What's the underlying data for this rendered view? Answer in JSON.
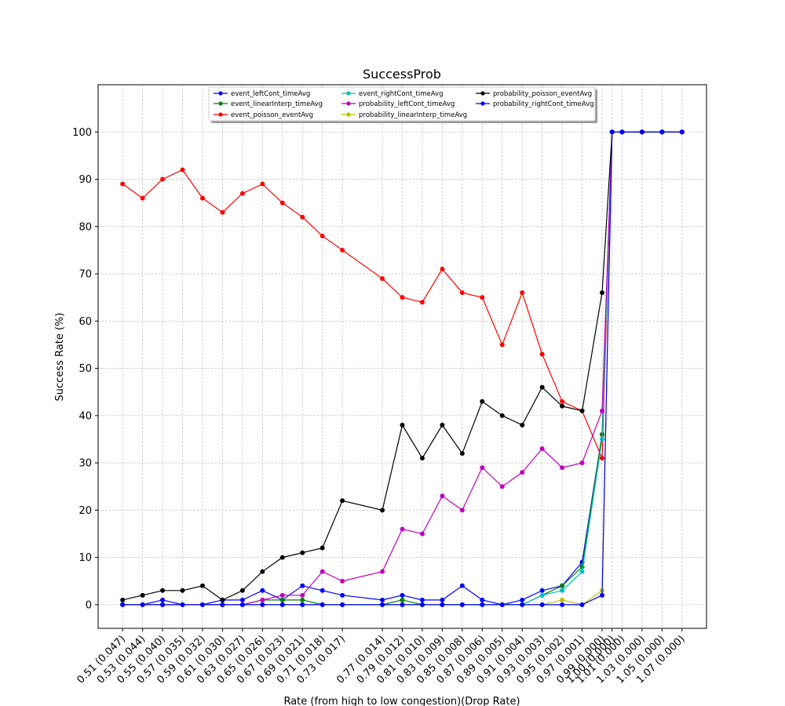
{
  "chart_data": {
    "type": "line",
    "title": "SuccessProb",
    "xlabel": "Rate (from high to low congestion)(Drop Rate)",
    "ylabel": "Success Rate (%)",
    "ylim": [
      -5,
      110
    ],
    "yticks": [
      0,
      10,
      20,
      30,
      40,
      50,
      60,
      70,
      80,
      90,
      100
    ],
    "grid": true,
    "legend_position": "top-center",
    "x": [
      0.51,
      0.53,
      0.55,
      0.57,
      0.59,
      0.61,
      0.63,
      0.65,
      0.67,
      0.69,
      0.71,
      0.73,
      0.77,
      0.79,
      0.81,
      0.83,
      0.85,
      0.87,
      0.89,
      0.91,
      0.93,
      0.95,
      0.97,
      0.99,
      1.0,
      1.01,
      1.03,
      1.05,
      1.07
    ],
    "categories": [
      "0.51 (0.047)",
      "0.53 (0.044)",
      "0.55 (0.040)",
      "0.57 (0.035)",
      "0.59 (0.032)",
      "0.61 (0.030)",
      "0.63 (0.027)",
      "0.65 (0.026)",
      "0.67 (0.023)",
      "0.69 (0.021)",
      "0.71 (0.018)",
      "0.73 (0.017)",
      "0.77 (0.014)",
      "0.79 (0.012)",
      "0.81 (0.010)",
      "0.83 (0.009)",
      "0.85 (0.008)",
      "0.87 (0.006)",
      "0.89 (0.005)",
      "0.91 (0.004)",
      "0.93 (0.003)",
      "0.95 (0.002)",
      "0.97 (0.001)",
      "0.99 (0.000)",
      "1.00 (0.000)",
      "1.01 (0.000)",
      "1.03 (0.000)",
      "1.05 (0.000)",
      "1.07 (0.000)"
    ],
    "series": [
      {
        "name": "event_leftCont_timeAvg",
        "color": "#0000ff",
        "values": [
          0,
          0,
          1,
          0,
          0,
          1,
          1,
          3,
          1,
          4,
          3,
          2,
          1,
          2,
          1,
          1,
          4,
          1,
          0,
          1,
          3,
          4,
          9,
          36,
          100,
          100,
          100,
          100,
          100
        ]
      },
      {
        "name": "event_linearInterp_timeAvg",
        "color": "#008000",
        "values": [
          0,
          0,
          0,
          0,
          0,
          0,
          0,
          1,
          1,
          1,
          0,
          0,
          0,
          1,
          0,
          0,
          0,
          0,
          0,
          0,
          2,
          4,
          8,
          36,
          100,
          100,
          100,
          100,
          100
        ]
      },
      {
        "name": "event_poisson_eventAvg",
        "color": "#ff0000",
        "values": [
          89,
          86,
          90,
          92,
          86,
          83,
          87,
          89,
          85,
          82,
          78,
          75,
          69,
          65,
          64,
          71,
          66,
          65,
          55,
          66,
          53,
          43,
          41,
          31,
          100,
          100,
          100,
          100,
          100
        ]
      },
      {
        "name": "event_rightCont_timeAvg",
        "color": "#00bfbf",
        "values": [
          0,
          0,
          0,
          0,
          0,
          0,
          0,
          0,
          0,
          0,
          0,
          0,
          0,
          0,
          0,
          0,
          0,
          0,
          0,
          0,
          2,
          3,
          7,
          35,
          100,
          100,
          100,
          100,
          100
        ]
      },
      {
        "name": "probability_leftCont_timeAvg",
        "color": "#bf00bf",
        "values": [
          0,
          0,
          0,
          0,
          0,
          0,
          0,
          1,
          2,
          2,
          7,
          5,
          7,
          16,
          15,
          23,
          20,
          29,
          25,
          28,
          33,
          29,
          30,
          41,
          100,
          100,
          100,
          100,
          100
        ]
      },
      {
        "name": "probability_linearInterp_timeAvg",
        "color": "#bfbf00",
        "values": [
          0,
          0,
          0,
          0,
          0,
          0,
          0,
          0,
          0,
          0,
          0,
          0,
          0,
          0,
          0,
          0,
          0,
          0,
          0,
          0,
          0,
          1,
          0,
          3,
          100,
          100,
          100,
          100,
          100
        ]
      },
      {
        "name": "probability_poisson_eventAvg",
        "color": "#000000",
        "values": [
          1,
          2,
          3,
          3,
          4,
          1,
          3,
          7,
          10,
          11,
          12,
          22,
          20,
          38,
          31,
          38,
          32,
          43,
          40,
          38,
          46,
          42,
          41,
          66,
          100,
          100,
          100,
          100,
          100
        ]
      },
      {
        "name": "probability_rightCont_timeAvg",
        "color": "#0000ff",
        "values": [
          0,
          0,
          0,
          0,
          0,
          0,
          0,
          0,
          0,
          0,
          0,
          0,
          0,
          0,
          0,
          0,
          0,
          0,
          0,
          0,
          0,
          0,
          0,
          2,
          100,
          100,
          100,
          100,
          100
        ]
      }
    ]
  }
}
